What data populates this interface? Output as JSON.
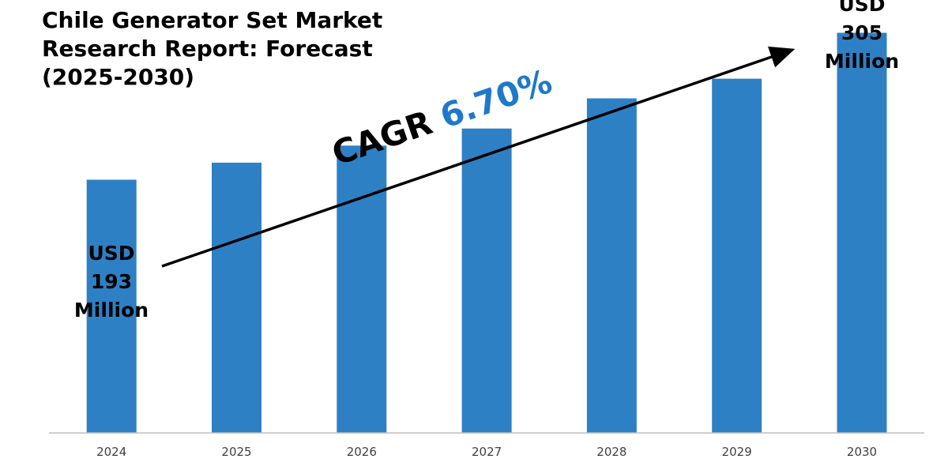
{
  "title_lines": [
    "Chile Generator Set Market",
    "Research Report: Forecast",
    "(2025-2030)"
  ],
  "cagr": {
    "label": "CAGR",
    "value": "6.70%"
  },
  "start_label": {
    "lines": [
      "USD",
      "193",
      "Million"
    ]
  },
  "end_label": {
    "lines": [
      "USD",
      "305",
      "Million"
    ]
  },
  "colors": {
    "bar": "#2e80c5",
    "cagr_value": "#1f78c9",
    "axis": "#bfbfbf",
    "tick_text": "#404040"
  },
  "chart_data": {
    "type": "bar",
    "title": "Chile Generator Set Market Research Report: Forecast (2025-2030)",
    "categories": [
      "2024",
      "2025",
      "2026",
      "2027",
      "2028",
      "2029",
      "2030"
    ],
    "values": [
      193,
      206,
      219,
      232,
      255,
      270,
      305
    ],
    "unit": "USD Million",
    "ylim": [
      0,
      330
    ],
    "grid": false,
    "legend": "none"
  }
}
